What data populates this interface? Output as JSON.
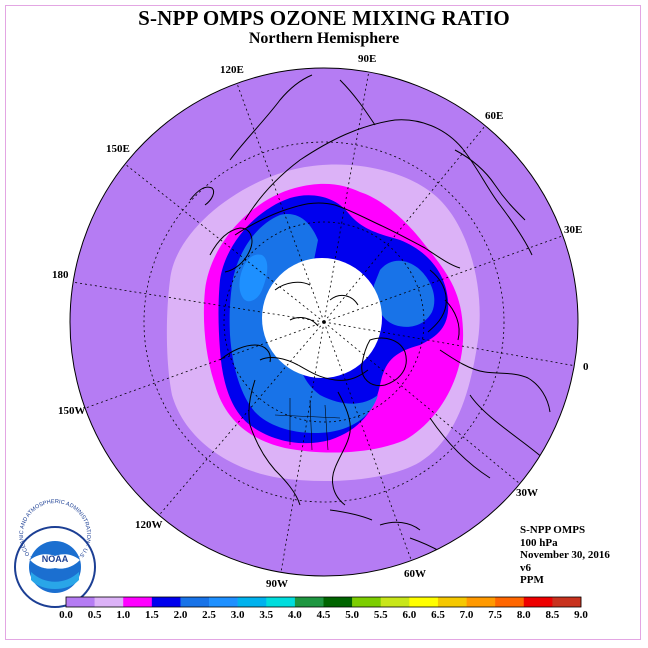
{
  "title": "S-NPP OMPS OZONE MIXING RATIO",
  "subtitle": "Northern Hemisphere",
  "info": {
    "instrument": "S-NPP OMPS",
    "level": "100 hPa",
    "date": "November 30, 2016",
    "version": "v6",
    "units": "PPM"
  },
  "logo": {
    "text": "NOAA",
    "ring_text": "NATIONAL OCEANIC AND ATMOSPHERIC ADMINISTRATION · U.S. DEPARTMENT OF COMMERCE"
  },
  "longitude_labels": {
    "lon_0": "0",
    "lon_30e": "30E",
    "lon_60e": "60E",
    "lon_90e": "90E",
    "lon_120e": "120E",
    "lon_150e": "150E",
    "lon_180": "180",
    "lon_150w": "150W",
    "lon_120w": "120W",
    "lon_90w": "90W",
    "lon_60w": "60W",
    "lon_30w": "30W"
  },
  "colorbar": {
    "labels": [
      "0.0",
      "0.5",
      "1.0",
      "1.5",
      "2.0",
      "2.5",
      "3.0",
      "3.5",
      "4.0",
      "4.5",
      "5.0",
      "5.5",
      "6.0",
      "6.5",
      "7.0",
      "7.5",
      "8.0",
      "8.5",
      "9.0"
    ],
    "colors": [
      "#b57cf3",
      "#dcb2f7",
      "#ff00ff",
      "#0000ee",
      "#1873e8",
      "#1e90ff",
      "#00b2ee",
      "#00dddd",
      "#1e9640",
      "#006400",
      "#7ccd00",
      "#c8e619",
      "#ffff00",
      "#f5c800",
      "#ff9900",
      "#ff6600",
      "#ee0000",
      "#c8321e",
      "#8b5a2b"
    ]
  },
  "colors": {
    "outer_field": "#b57cf3",
    "level_0_5": "#dcb2f7",
    "level_1_0": "#ff00ff",
    "level_1_5": "#0000ee",
    "level_2_0": "#1873e8",
    "level_2_5": "#1e90ff",
    "no_data": "#ffffff",
    "border": "#e3a6e3"
  }
}
